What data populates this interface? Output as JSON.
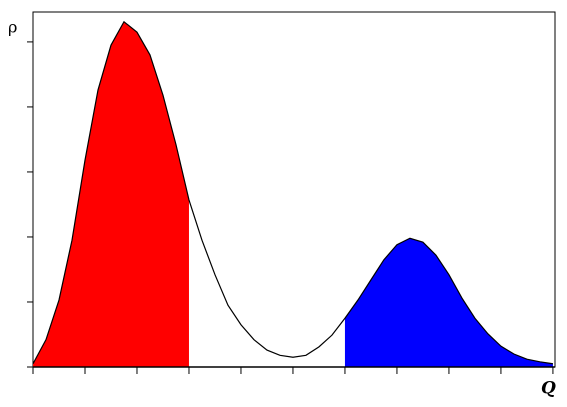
{
  "chart_data": {
    "type": "line",
    "y_label": "ρ",
    "x_label": "Q",
    "x": [
      0,
      0.25,
      0.5,
      0.75,
      1,
      1.25,
      1.5,
      1.75,
      2,
      2.25,
      2.5,
      2.75,
      3,
      3.25,
      3.5,
      3.75,
      4,
      4.25,
      4.5,
      4.75,
      5,
      5.25,
      5.5,
      5.75,
      6,
      6.25,
      6.5,
      6.75,
      7,
      7.25,
      7.5,
      7.75,
      8,
      8.25,
      8.5,
      8.75,
      9,
      9.25,
      9.5,
      9.75,
      10
    ],
    "series": [
      {
        "color": "#000000",
        "values": [
          0.05,
          0.42,
          1.03,
          1.95,
          3.18,
          4.26,
          4.95,
          5.31,
          5.15,
          4.8,
          4.18,
          3.42,
          2.57,
          1.95,
          1.42,
          0.95,
          0.65,
          0.42,
          0.26,
          0.18,
          0.15,
          0.18,
          0.31,
          0.49,
          0.75,
          1.03,
          1.34,
          1.65,
          1.88,
          1.98,
          1.92,
          1.72,
          1.42,
          1.06,
          0.75,
          0.51,
          0.32,
          0.2,
          0.12,
          0.08,
          0.05
        ]
      }
    ],
    "fills": [
      {
        "from": 0,
        "to": 3,
        "color": "#ff0000"
      },
      {
        "from": 6,
        "to": 10,
        "color": "#0000ff"
      }
    ],
    "xlim": [
      0,
      10.04
    ],
    "ylim": [
      0,
      5.46
    ],
    "xticks": [
      0,
      1,
      2,
      3,
      4,
      5,
      6,
      7,
      8,
      9,
      10
    ],
    "yticks": [
      0,
      1,
      2,
      3,
      4,
      5
    ]
  }
}
